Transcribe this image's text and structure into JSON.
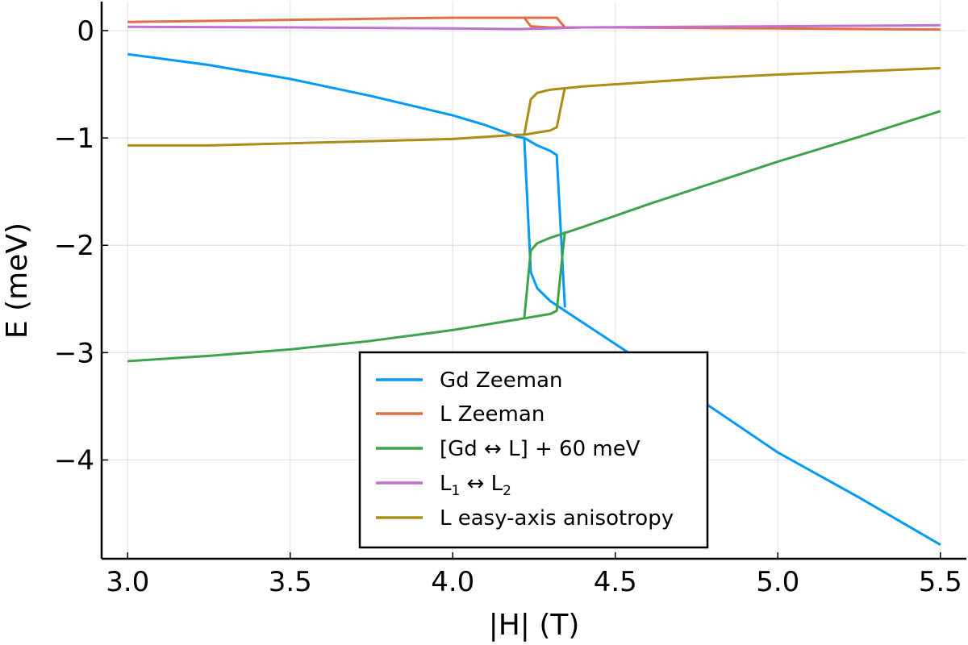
{
  "chart_data": {
    "type": "line",
    "xlabel": "|H| (T)",
    "ylabel": "E (meV)",
    "xlim": [
      2.92,
      5.58
    ],
    "ylim": [
      -4.92,
      0.27
    ],
    "x_ticks": [
      3.0,
      3.5,
      4.0,
      4.5,
      5.0,
      5.5
    ],
    "x_tick_labels": [
      "3.0",
      "3.5",
      "4.0",
      "4.5",
      "5.0",
      "5.5"
    ],
    "y_ticks": [
      0,
      -1,
      -2,
      -3,
      -4
    ],
    "y_tick_labels": [
      "0",
      "−1",
      "−2",
      "−3",
      "−4"
    ],
    "grid": true,
    "legend_position": "bottom-center",
    "series": [
      {
        "name": "Gd Zeeman",
        "color": "#009AFA",
        "branches": [
          {
            "x": [
              3.0,
              3.25,
              3.5,
              3.75,
              4.0,
              4.1,
              4.2,
              4.22,
              4.24,
              4.26,
              4.3,
              4.4,
              4.6,
              4.8,
              5.0,
              5.25,
              5.5
            ],
            "y": [
              -0.22,
              -0.32,
              -0.45,
              -0.61,
              -0.79,
              -0.88,
              -0.99,
              -1.0,
              -2.25,
              -2.4,
              -2.52,
              -2.72,
              -3.12,
              -3.52,
              -3.93,
              -4.35,
              -4.79
            ]
          },
          {
            "x": [
              4.22,
              4.26,
              4.3,
              4.32,
              4.345
            ],
            "y": [
              -1.0,
              -1.07,
              -1.12,
              -1.16,
              -2.58
            ]
          }
        ]
      },
      {
        "name": "L Zeeman",
        "color": "#E26F46",
        "branches": [
          {
            "x": [
              3.0,
              3.5,
              4.0,
              4.22,
              4.24,
              4.3,
              4.5,
              5.0,
              5.5
            ],
            "y": [
              0.08,
              0.1,
              0.12,
              0.12,
              0.04,
              0.03,
              0.03,
              0.02,
              0.01
            ]
          },
          {
            "x": [
              4.22,
              4.3,
              4.32,
              4.345
            ],
            "y": [
              0.12,
              0.12,
              0.12,
              0.03
            ]
          }
        ]
      },
      {
        "name": "[Gd ↔ L] + 60 meV",
        "color": "#3DA44D",
        "branches": [
          {
            "x": [
              3.0,
              3.25,
              3.5,
              3.75,
              4.0,
              4.1,
              4.2,
              4.22,
              4.24,
              4.26,
              4.3,
              4.4,
              4.6,
              4.8,
              5.0,
              5.25,
              5.5
            ],
            "y": [
              -3.08,
              -3.03,
              -2.97,
              -2.89,
              -2.79,
              -2.74,
              -2.69,
              -2.68,
              -2.05,
              -1.98,
              -1.93,
              -1.83,
              -1.62,
              -1.42,
              -1.22,
              -0.99,
              -0.75
            ]
          },
          {
            "x": [
              4.22,
              4.26,
              4.3,
              4.32,
              4.345
            ],
            "y": [
              -2.68,
              -2.66,
              -2.64,
              -2.61,
              -1.87
            ]
          }
        ]
      },
      {
        "name": "L₁ ↔ L₂",
        "color": "#C271D2",
        "branches": [
          {
            "x": [
              3.0,
              3.5,
              4.0,
              4.2,
              4.3,
              4.4,
              5.0,
              5.5
            ],
            "y": [
              0.035,
              0.03,
              0.02,
              0.015,
              0.02,
              0.03,
              0.04,
              0.05
            ]
          }
        ]
      },
      {
        "name": "L easy-axis anisotropy",
        "color": "#AC8D18",
        "branches": [
          {
            "x": [
              3.0,
              3.25,
              3.5,
              3.75,
              4.0,
              4.1,
              4.2,
              4.22,
              4.24,
              4.26,
              4.3,
              4.4,
              4.6,
              4.8,
              5.0,
              5.25,
              5.5
            ],
            "y": [
              -1.07,
              -1.07,
              -1.05,
              -1.03,
              -1.01,
              -0.99,
              -0.97,
              -0.97,
              -0.64,
              -0.58,
              -0.55,
              -0.52,
              -0.48,
              -0.44,
              -0.41,
              -0.38,
              -0.35
            ]
          },
          {
            "x": [
              4.22,
              4.26,
              4.3,
              4.32,
              4.345
            ],
            "y": [
              -0.97,
              -0.95,
              -0.93,
              -0.9,
              -0.53
            ]
          }
        ]
      }
    ]
  },
  "legend": {
    "items": [
      {
        "label": "Gd Zeeman",
        "color": "#009AFA"
      },
      {
        "label": "L Zeeman",
        "color": "#E26F46"
      },
      {
        "label": "[Gd ↔ L] + 60 meV",
        "color": "#3DA44D"
      },
      {
        "label": "L",
        "sub1": "1",
        "mid": " ↔ L",
        "sub2": "2",
        "color": "#C271D2"
      },
      {
        "label": "L easy-axis anisotropy",
        "color": "#AC8D18"
      }
    ]
  }
}
